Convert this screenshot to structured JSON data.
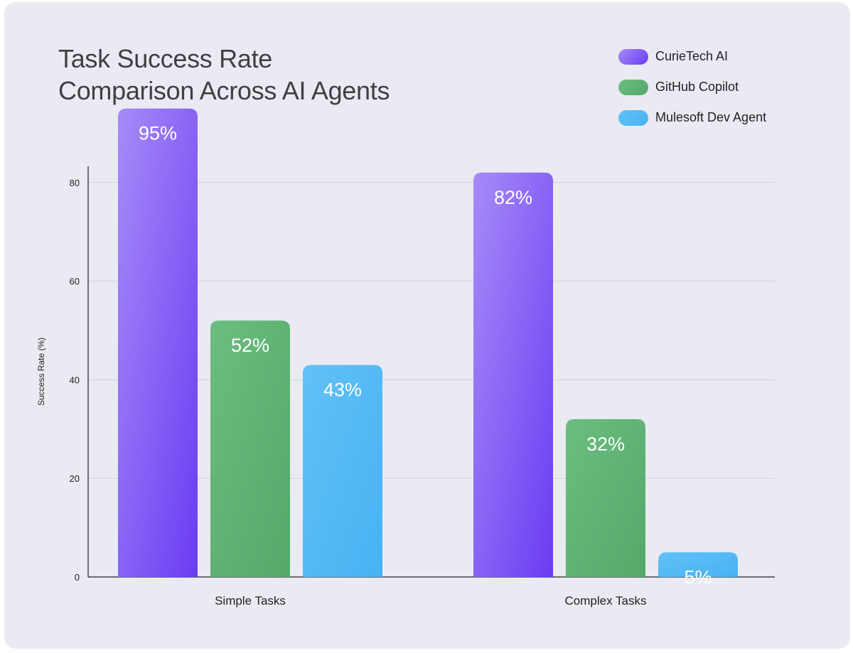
{
  "chart_data": {
    "type": "bar",
    "title": "Task Success Rate Comparison Across AI Agents",
    "title_lines": [
      "Task Success Rate",
      "Comparison Across AI Agents"
    ],
    "xlabel": "",
    "ylabel": "Success Rate (%)",
    "ylim": [
      0,
      100
    ],
    "yticks": [
      0,
      20,
      40,
      60,
      80
    ],
    "grid": true,
    "legend_position": "top-right",
    "categories": [
      "Simple Tasks",
      "Complex Tasks"
    ],
    "series": [
      {
        "name": "CurieTech AI",
        "values": [
          95,
          82
        ],
        "labels": [
          "95%",
          "82%"
        ],
        "color": "#8a5cf6",
        "color_light": "#a68bf8",
        "color_dark": "#6a3cf2"
      },
      {
        "name": "GitHub Copilot",
        "values": [
          52,
          32
        ],
        "labels": [
          "52%",
          "32%"
        ],
        "color": "#5fb374",
        "color_light": "#6cbd80",
        "color_dark": "#54a86a"
      },
      {
        "name": "Mulesoft Dev Agent",
        "values": [
          43,
          5
        ],
        "labels": [
          "43%",
          "5%"
        ],
        "color": "#55bbf5",
        "color_light": "#62c1f7",
        "color_dark": "#47b2f2"
      }
    ]
  }
}
